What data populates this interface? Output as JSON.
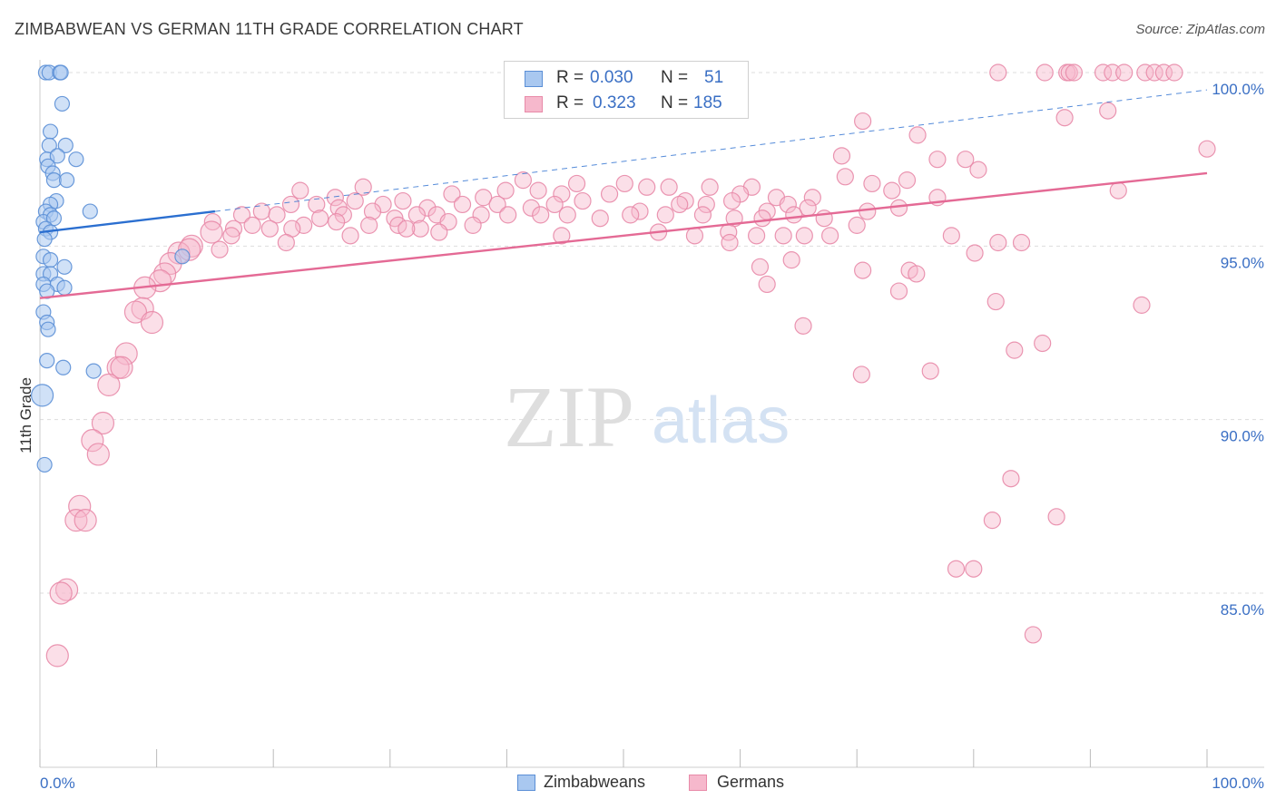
{
  "title": "ZIMBABWEAN VS GERMAN 11TH GRADE CORRELATION CHART",
  "source": "Source: ZipAtlas.com",
  "watermark": {
    "part1": "ZIP",
    "part2": "atlas"
  },
  "colors": {
    "blue_fill": "#a9c8f0",
    "blue_stroke": "#5b8fd6",
    "blue_line": "#2b6fd0",
    "pink_fill": "#f6b8cc",
    "pink_stroke": "#e88aa8",
    "pink_line": "#e46a95",
    "tick_text": "#3a6fc4",
    "grid": "#dddddd"
  },
  "legend": {
    "rows": [
      {
        "r_label": "R =",
        "r_value": "0.030",
        "n_label": "N =",
        "n_value": "51"
      },
      {
        "r_label": "R =",
        "r_value": "0.323",
        "n_label": "N =",
        "n_value": "185"
      }
    ]
  },
  "bottom_legend": {
    "series1": "Zimbabweans",
    "series2": "Germans"
  },
  "chart_data": {
    "type": "scatter",
    "title": "ZIMBABWEAN VS GERMAN 11TH GRADE CORRELATION CHART",
    "xlabel": "",
    "ylabel": "11th Grade",
    "xlim": [
      0,
      100
    ],
    "ylim": [
      80.2,
      100.6
    ],
    "x_tick_labels": [
      {
        "value": 0,
        "label": "0.0%"
      },
      {
        "value": 100,
        "label": "100.0%"
      }
    ],
    "x_minor_ticks": [
      10,
      20,
      30,
      40,
      50,
      60,
      70,
      80,
      90
    ],
    "y_tick_labels": [
      {
        "value": 100,
        "label": "100.0%"
      },
      {
        "value": 95,
        "label": "95.0%"
      },
      {
        "value": 90,
        "label": "90.0%"
      },
      {
        "value": 85,
        "label": "85.0%"
      }
    ],
    "grid": true,
    "legend_position": "top-center",
    "series": [
      {
        "name": "Zimbabweans",
        "R": 0.03,
        "N": 51,
        "trend": {
          "x0": 0,
          "y0": 95.4,
          "x1": 15,
          "y1": 96.0,
          "dashed_extension_to": {
            "x": 100,
            "y": 99.5
          }
        },
        "points": [
          [
            0.5,
            100.0,
            1
          ],
          [
            0.8,
            100.0,
            1
          ],
          [
            1.7,
            100.0,
            1
          ],
          [
            1.8,
            100.0,
            1
          ],
          [
            1.9,
            99.1,
            1
          ],
          [
            0.9,
            98.3,
            1
          ],
          [
            0.8,
            97.9,
            1
          ],
          [
            2.2,
            97.9,
            1
          ],
          [
            0.6,
            97.5,
            1
          ],
          [
            1.5,
            97.6,
            1
          ],
          [
            3.1,
            97.5,
            1
          ],
          [
            0.7,
            97.3,
            1
          ],
          [
            1.1,
            97.1,
            1
          ],
          [
            1.2,
            96.9,
            1
          ],
          [
            2.3,
            96.9,
            1
          ],
          [
            1.4,
            96.3,
            1
          ],
          [
            0.9,
            96.2,
            1
          ],
          [
            0.5,
            96.0,
            1
          ],
          [
            4.3,
            96.0,
            1
          ],
          [
            0.9,
            95.9,
            1
          ],
          [
            0.3,
            95.7,
            1
          ],
          [
            1.2,
            95.8,
            1
          ],
          [
            0.5,
            95.5,
            1
          ],
          [
            0.9,
            95.4,
            1
          ],
          [
            0.4,
            95.2,
            1
          ],
          [
            0.3,
            94.7,
            1
          ],
          [
            0.9,
            94.6,
            1
          ],
          [
            2.1,
            94.4,
            1
          ],
          [
            0.3,
            94.2,
            1
          ],
          [
            0.9,
            94.2,
            1
          ],
          [
            0.3,
            93.9,
            1
          ],
          [
            1.5,
            93.9,
            1
          ],
          [
            0.6,
            93.7,
            1
          ],
          [
            2.1,
            93.8,
            1
          ],
          [
            0.3,
            93.1,
            1
          ],
          [
            0.6,
            92.8,
            1
          ],
          [
            0.7,
            92.6,
            1
          ],
          [
            0.6,
            91.7,
            1
          ],
          [
            2.0,
            91.5,
            1
          ],
          [
            4.6,
            91.4,
            1
          ],
          [
            0.2,
            90.7,
            2
          ],
          [
            0.4,
            88.7,
            1
          ],
          [
            12.2,
            94.7,
            1
          ]
        ]
      },
      {
        "name": "Germans",
        "R": 0.323,
        "N": 185,
        "trend": {
          "x0": 0,
          "y0": 93.5,
          "x1": 100,
          "y1": 97.1
        },
        "points": [
          [
            82.1,
            100.0,
            1
          ],
          [
            86.1,
            100.0,
            1
          ],
          [
            88.0,
            100.0,
            1
          ],
          [
            88.2,
            100.0,
            1
          ],
          [
            88.6,
            100.0,
            1
          ],
          [
            91.1,
            100.0,
            1
          ],
          [
            91.9,
            100.0,
            1
          ],
          [
            92.9,
            100.0,
            1
          ],
          [
            94.7,
            100.0,
            1
          ],
          [
            95.5,
            100.0,
            1
          ],
          [
            96.3,
            100.0,
            1
          ],
          [
            97.2,
            100.0,
            1
          ],
          [
            70.5,
            98.6,
            1
          ],
          [
            87.8,
            98.7,
            1
          ],
          [
            75.2,
            98.2,
            1
          ],
          [
            91.5,
            98.9,
            1
          ],
          [
            100,
            97.8,
            1
          ],
          [
            68.7,
            97.6,
            1
          ],
          [
            76.9,
            97.5,
            1
          ],
          [
            79.3,
            97.5,
            1
          ],
          [
            80.4,
            97.2,
            1
          ],
          [
            71.3,
            96.8,
            1
          ],
          [
            61.0,
            96.7,
            1
          ],
          [
            57.4,
            96.7,
            1
          ],
          [
            69.0,
            97.0,
            1
          ],
          [
            74.3,
            96.9,
            1
          ],
          [
            92.4,
            96.6,
            1
          ],
          [
            27.7,
            96.7,
            1
          ],
          [
            41.4,
            96.9,
            1
          ],
          [
            42.7,
            96.6,
            1
          ],
          [
            46.0,
            96.8,
            1
          ],
          [
            50.1,
            96.8,
            1
          ],
          [
            52.0,
            96.7,
            1
          ],
          [
            53.9,
            96.7,
            1
          ],
          [
            22.3,
            96.6,
            1
          ],
          [
            25.3,
            96.4,
            1
          ],
          [
            31.1,
            96.3,
            1
          ],
          [
            35.3,
            96.5,
            1
          ],
          [
            38.0,
            96.4,
            1
          ],
          [
            39.9,
            96.6,
            1
          ],
          [
            44.7,
            96.5,
            1
          ],
          [
            48.8,
            96.5,
            1
          ],
          [
            55.3,
            96.3,
            1
          ],
          [
            60.0,
            96.5,
            1
          ],
          [
            63.1,
            96.4,
            1
          ],
          [
            66.2,
            96.4,
            1
          ],
          [
            73.0,
            96.6,
            1
          ],
          [
            76.9,
            96.4,
            1
          ],
          [
            19.0,
            96.0,
            1
          ],
          [
            21.5,
            96.2,
            1
          ],
          [
            23.7,
            96.2,
            1
          ],
          [
            25.6,
            96.1,
            1
          ],
          [
            27.0,
            96.3,
            1
          ],
          [
            29.4,
            96.2,
            1
          ],
          [
            33.2,
            96.1,
            1
          ],
          [
            36.2,
            96.2,
            1
          ],
          [
            39.2,
            96.2,
            1
          ],
          [
            42.1,
            96.1,
            1
          ],
          [
            44.1,
            96.2,
            1
          ],
          [
            46.5,
            96.3,
            1
          ],
          [
            51.4,
            96.0,
            1
          ],
          [
            54.8,
            96.2,
            1
          ],
          [
            57.1,
            96.2,
            1
          ],
          [
            59.3,
            96.3,
            1
          ],
          [
            62.3,
            96.0,
            1
          ],
          [
            64.1,
            96.2,
            1
          ],
          [
            65.8,
            96.1,
            1
          ],
          [
            70.9,
            96.0,
            1
          ],
          [
            73.6,
            96.1,
            1
          ],
          [
            17.3,
            95.9,
            1
          ],
          [
            20.3,
            95.9,
            1
          ],
          [
            24.0,
            95.8,
            1
          ],
          [
            26.0,
            95.9,
            1
          ],
          [
            28.5,
            96.0,
            1
          ],
          [
            30.4,
            95.8,
            1
          ],
          [
            32.3,
            95.9,
            1
          ],
          [
            34.0,
            95.9,
            1
          ],
          [
            37.8,
            95.9,
            1
          ],
          [
            40.1,
            95.9,
            1
          ],
          [
            42.9,
            95.9,
            1
          ],
          [
            45.2,
            95.9,
            1
          ],
          [
            48.0,
            95.8,
            1
          ],
          [
            50.6,
            95.9,
            1
          ],
          [
            53.6,
            95.9,
            1
          ],
          [
            56.8,
            95.9,
            1
          ],
          [
            59.5,
            95.8,
            1
          ],
          [
            61.9,
            95.8,
            1
          ],
          [
            64.6,
            95.9,
            1
          ],
          [
            67.2,
            95.8,
            1
          ],
          [
            14.8,
            95.7,
            1
          ],
          [
            16.6,
            95.5,
            1
          ],
          [
            18.2,
            95.6,
            1
          ],
          [
            19.7,
            95.5,
            1
          ],
          [
            22.6,
            95.6,
            1
          ],
          [
            25.4,
            95.7,
            1
          ],
          [
            28.2,
            95.6,
            1
          ],
          [
            30.7,
            95.6,
            1
          ],
          [
            32.6,
            95.5,
            1
          ],
          [
            35.0,
            95.7,
            1
          ],
          [
            37.1,
            95.6,
            1
          ],
          [
            14.7,
            95.4,
            2
          ],
          [
            16.4,
            95.3,
            1
          ],
          [
            21.6,
            95.5,
            1
          ],
          [
            26.6,
            95.3,
            1
          ],
          [
            31.4,
            95.5,
            1
          ],
          [
            34.2,
            95.4,
            1
          ],
          [
            44.7,
            95.3,
            1
          ],
          [
            53.0,
            95.4,
            1
          ],
          [
            56.1,
            95.3,
            1
          ],
          [
            59.0,
            95.4,
            1
          ],
          [
            61.4,
            95.3,
            1
          ],
          [
            63.7,
            95.3,
            1
          ],
          [
            65.5,
            95.3,
            1
          ],
          [
            67.7,
            95.3,
            1
          ],
          [
            70.0,
            95.6,
            1
          ],
          [
            78.1,
            95.3,
            1
          ],
          [
            13.0,
            95.0,
            2
          ],
          [
            15.4,
            94.9,
            1
          ],
          [
            21.1,
            95.1,
            1
          ],
          [
            59.1,
            95.1,
            1
          ],
          [
            82.1,
            95.1,
            1
          ],
          [
            84.1,
            95.1,
            1
          ],
          [
            11.9,
            94.8,
            2
          ],
          [
            12.8,
            94.9,
            2
          ],
          [
            80.1,
            94.8,
            1
          ],
          [
            61.7,
            94.4,
            1
          ],
          [
            64.4,
            94.6,
            1
          ],
          [
            70.5,
            94.3,
            1
          ],
          [
            74.5,
            94.3,
            1
          ],
          [
            75.1,
            94.2,
            1
          ],
          [
            11.2,
            94.5,
            2
          ],
          [
            10.7,
            94.2,
            2
          ],
          [
            10.3,
            94.0,
            2
          ],
          [
            9.0,
            93.8,
            2
          ],
          [
            62.3,
            93.9,
            1
          ],
          [
            73.6,
            93.7,
            1
          ],
          [
            81.9,
            93.4,
            1
          ],
          [
            94.4,
            93.3,
            1
          ],
          [
            8.8,
            93.2,
            2
          ],
          [
            8.2,
            93.1,
            2
          ],
          [
            9.6,
            92.8,
            2
          ],
          [
            65.4,
            92.7,
            1
          ],
          [
            85.9,
            92.2,
            1
          ],
          [
            83.5,
            92.0,
            1
          ],
          [
            7.4,
            91.9,
            2
          ],
          [
            6.7,
            91.5,
            2
          ],
          [
            7.0,
            91.5,
            2
          ],
          [
            70.4,
            91.3,
            1
          ],
          [
            76.3,
            91.4,
            1
          ],
          [
            5.9,
            91.0,
            2
          ],
          [
            5.4,
            89.9,
            2
          ],
          [
            4.5,
            89.4,
            2
          ],
          [
            5.0,
            89.0,
            2
          ],
          [
            83.2,
            88.3,
            1
          ],
          [
            3.4,
            87.5,
            2
          ],
          [
            3.1,
            87.1,
            2
          ],
          [
            3.9,
            87.1,
            2
          ],
          [
            81.6,
            87.1,
            1
          ],
          [
            87.1,
            87.2,
            1
          ],
          [
            78.5,
            85.7,
            1
          ],
          [
            80.0,
            85.7,
            1
          ],
          [
            2.3,
            85.1,
            2
          ],
          [
            1.8,
            85.0,
            2
          ],
          [
            85.1,
            83.8,
            1
          ],
          [
            1.5,
            83.2,
            2
          ]
        ]
      }
    ]
  }
}
